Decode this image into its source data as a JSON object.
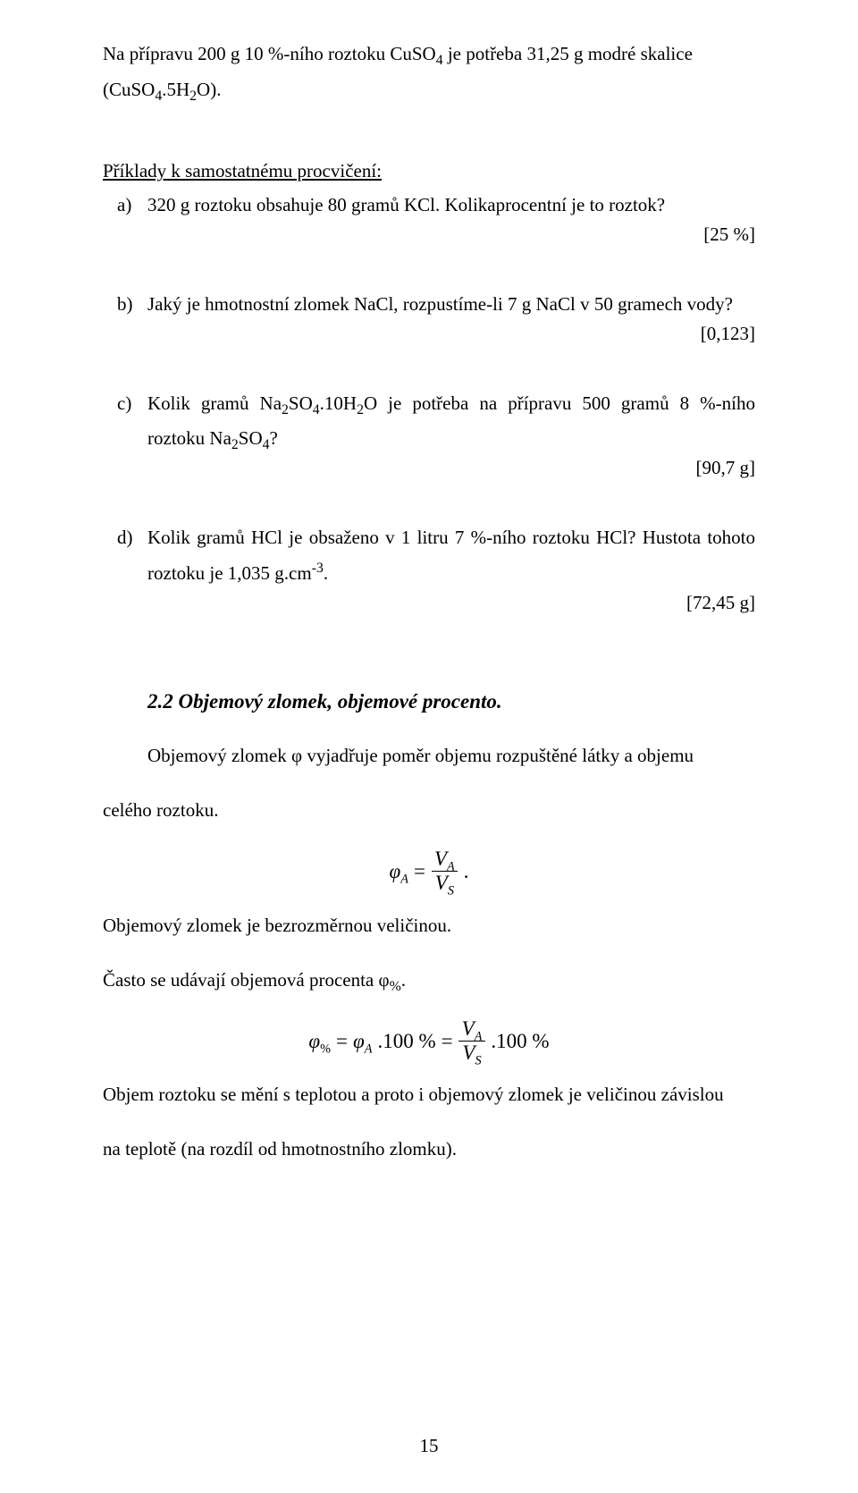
{
  "intro": {
    "line1_a": "Na přípravu 200 g 10 %-ního roztoku CuSO",
    "line1_b": " je potřeba 31,25 g modré skalice",
    "line2_a": "(CuSO",
    "line2_b": ".5H",
    "line2_c": "O)."
  },
  "section_title": "Příklady k samostatnému procvičení:",
  "problems": {
    "a": {
      "marker": "a)",
      "text": "320 g roztoku obsahuje 80 gramů KCl. Kolikaprocentní je to roztok?",
      "answer": "[25 %]"
    },
    "b": {
      "marker": "b)",
      "text": "Jaký je hmotnostní zlomek NaCl, rozpustíme-li 7 g NaCl v 50 gramech vody?",
      "answer": "[0,123]"
    },
    "c": {
      "marker": "c)",
      "pre": "Kolik gramů Na",
      "mid1": "SO",
      "mid2": ".10H",
      "mid3": "O je potřeba na přípravu 500 gramů 8 %-ního",
      "line2a": "roztoku Na",
      "line2b": "SO",
      "line2c": "?",
      "answer": "[90,7 g]"
    },
    "d": {
      "marker": "d)",
      "l1": "Kolik gramů HCl je obsaženo v 1 litru 7 %-ního roztoku HCl? Hustota",
      "l2a": "tohoto roztoku je 1,035 g.cm",
      "l2b": ".",
      "answer": "[72,45 g]"
    }
  },
  "heading22": "2.2 Objemový zlomek, objemové procento.",
  "para1_a": "Objemový zlomek ",
  "para1_b": " vyjadřuje poměr objemu rozpuštěné látky a objemu",
  "para1_c": "celého roztoku.",
  "phi": "φ",
  "eq1": {
    "lhs_var": "φ",
    "lhs_sub": "A",
    "eq": "=",
    "num_var": "V",
    "num_sub": "A",
    "den_var": "V",
    "den_sub": "S",
    "dot": "."
  },
  "line_after_eq1": "Objemový zlomek je bezrozměrnou veličinou.",
  "line_casto_a": "Často se udávají objemová procenta ",
  "line_casto_b": ".",
  "phi_pct_sub": "%",
  "eq2": {
    "lhs_var": "φ",
    "lhs_sub": "%",
    "eq": "=",
    "rhs1_var": "φ",
    "rhs1_sub": "A",
    "hundred": ".100 %",
    "num_var": "V",
    "num_sub": "A",
    "den_var": "V",
    "den_sub": "S"
  },
  "para_last_a": "Objem roztoku se mění s teplotou a proto i objemový zlomek je veličinou závislou",
  "para_last_b": "na teplotě (na rozdíl od hmotnostního zlomku).",
  "page_number": "15"
}
